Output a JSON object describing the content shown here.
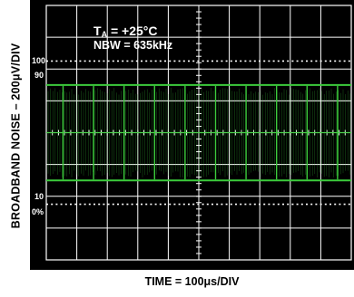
{
  "chart_data": {
    "type": "line",
    "ylabel": "BROADBAND NOISE – 200μV/DIV",
    "xlabel": "TIME = 100μs/DIV",
    "annotations": {
      "temperature": {
        "prefix": "T",
        "subscript": "A",
        "value": " = +25°C"
      },
      "bandwidth": "NBW = 635kHz"
    },
    "markers": [
      "100",
      "90",
      "10",
      "0%"
    ],
    "grid": true,
    "divisions": {
      "x": 10,
      "y": 8
    },
    "noise_band": {
      "center_div": 0,
      "upper_div": 1.5,
      "lower_div": -1.5
    },
    "colors": {
      "background": "#000000",
      "grid": "#ffffff",
      "trace": "#3ccc3c"
    }
  }
}
